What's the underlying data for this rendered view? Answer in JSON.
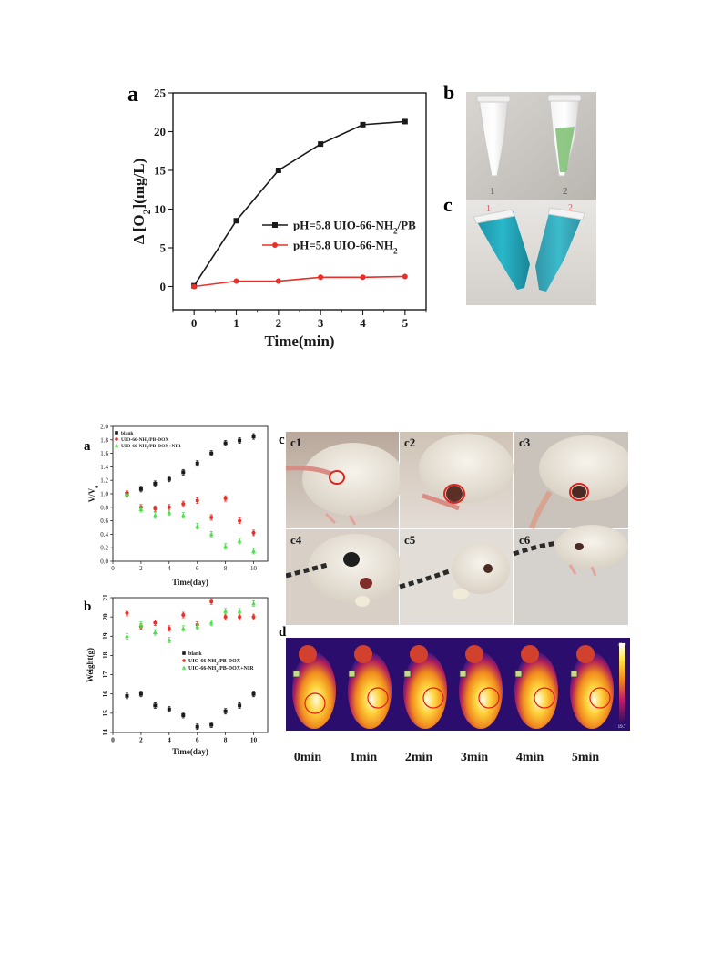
{
  "figure_top": {
    "panel_a_letter": "a",
    "panel_b_letter": "b",
    "panel_c_letter": "c",
    "tube_labels_b": [
      "1",
      "2"
    ],
    "tube_labels_c": [
      "1",
      "2"
    ]
  },
  "figure_bottom": {
    "panel_a_letter": "a",
    "panel_b_letter": "b",
    "panel_c_letter": "c",
    "panel_d_letter": "d",
    "photo_labels": [
      "c1",
      "c2",
      "c3",
      "c4",
      "c5",
      "c6"
    ],
    "thermal_times": [
      "0min",
      "1min",
      "2min",
      "3min",
      "4min",
      "5min"
    ],
    "thermal_scale_max": "45.0",
    "thermal_scale_min": "19.7"
  },
  "colors": {
    "black": "#1a1a1a",
    "red": "#e8302a",
    "green": "#4be04b"
  },
  "chart_data": [
    {
      "id": "oxygen",
      "type": "line",
      "ylabel": "Δ [O2](mg/L)",
      "xlabel": "Time(min)",
      "xlim": [
        -0.5,
        5.5
      ],
      "ylim": [
        -3,
        25
      ],
      "xticks": [
        0,
        1,
        2,
        3,
        4,
        5
      ],
      "yticks": [
        0,
        5,
        10,
        15,
        20,
        25
      ],
      "legend_position": "center-right",
      "series": [
        {
          "name": "pH=5.8 UIO-66-NH2/PB",
          "color": "#1a1a1a",
          "marker": "square",
          "x": [
            0,
            1,
            2,
            3,
            4,
            5
          ],
          "y": [
            0.1,
            8.5,
            15.0,
            18.4,
            20.9,
            21.3
          ]
        },
        {
          "name": "pH=5.8 UIO-66-NH2",
          "color": "#e8302a",
          "marker": "circle",
          "x": [
            0,
            1,
            2,
            3,
            4,
            5
          ],
          "y": [
            0.0,
            0.7,
            0.7,
            1.2,
            1.2,
            1.3
          ]
        }
      ]
    },
    {
      "id": "volume",
      "type": "scatter",
      "ylabel": "V/V0",
      "xlabel": "Time(day)",
      "xlim": [
        0,
        11
      ],
      "ylim": [
        0,
        2.0
      ],
      "xticks": [
        0,
        2,
        4,
        6,
        8,
        10
      ],
      "yticks": [
        0.0,
        0.2,
        0.4,
        0.6,
        0.8,
        1.0,
        1.2,
        1.4,
        1.6,
        1.8,
        2.0
      ],
      "legend_position": "top-left",
      "series": [
        {
          "name": "blank",
          "color": "#1a1a1a",
          "marker": "square",
          "x": [
            1,
            2,
            3,
            4,
            5,
            6,
            7,
            8,
            9,
            10
          ],
          "y": [
            1.0,
            1.07,
            1.15,
            1.22,
            1.32,
            1.45,
            1.6,
            1.75,
            1.79,
            1.85
          ]
        },
        {
          "name": "UIO-66-NH2/PB-DOX",
          "color": "#e8302a",
          "marker": "circle",
          "x": [
            1,
            2,
            3,
            4,
            5,
            6,
            7,
            8,
            9,
            10
          ],
          "y": [
            1.0,
            0.8,
            0.78,
            0.8,
            0.85,
            0.9,
            0.65,
            0.93,
            0.6,
            0.42
          ]
        },
        {
          "name": "UIO-66-NH2/PB-DOX+NIR",
          "color": "#4be04b",
          "marker": "triangle",
          "x": [
            1,
            2,
            3,
            4,
            5,
            6,
            7,
            8,
            9,
            10
          ],
          "y": [
            0.99,
            0.77,
            0.68,
            0.72,
            0.68,
            0.52,
            0.4,
            0.22,
            0.3,
            0.15
          ]
        }
      ]
    },
    {
      "id": "weight",
      "type": "scatter",
      "ylabel": "Weight(g)",
      "xlabel": "Time(day)",
      "xlim": [
        0,
        11
      ],
      "ylim": [
        14,
        21
      ],
      "xticks": [
        0,
        2,
        4,
        6,
        8,
        10
      ],
      "yticks": [
        14,
        15,
        16,
        17,
        18,
        19,
        20,
        21
      ],
      "legend_position": "center-right",
      "series": [
        {
          "name": "blank",
          "color": "#1a1a1a",
          "marker": "square",
          "x": [
            1,
            2,
            3,
            4,
            5,
            6,
            7,
            8,
            9,
            10
          ],
          "y": [
            15.9,
            16.0,
            15.4,
            15.2,
            14.9,
            14.3,
            14.4,
            15.1,
            15.4,
            16.0
          ]
        },
        {
          "name": "UIO-66-NH2/PB-DOX",
          "color": "#e8302a",
          "marker": "circle",
          "x": [
            1,
            2,
            3,
            4,
            5,
            6,
            7,
            8,
            9,
            10
          ],
          "y": [
            20.2,
            19.5,
            19.7,
            19.4,
            20.1,
            19.6,
            20.8,
            20.0,
            20.0,
            20.0
          ]
        },
        {
          "name": "UIO-66-NH2/PB-DOX+NIR",
          "color": "#4be04b",
          "marker": "triangle",
          "x": [
            1,
            2,
            3,
            4,
            5,
            6,
            7,
            8,
            9,
            10
          ],
          "y": [
            19.0,
            19.6,
            19.2,
            18.8,
            19.4,
            19.5,
            19.7,
            20.3,
            20.3,
            20.7
          ]
        }
      ]
    }
  ]
}
